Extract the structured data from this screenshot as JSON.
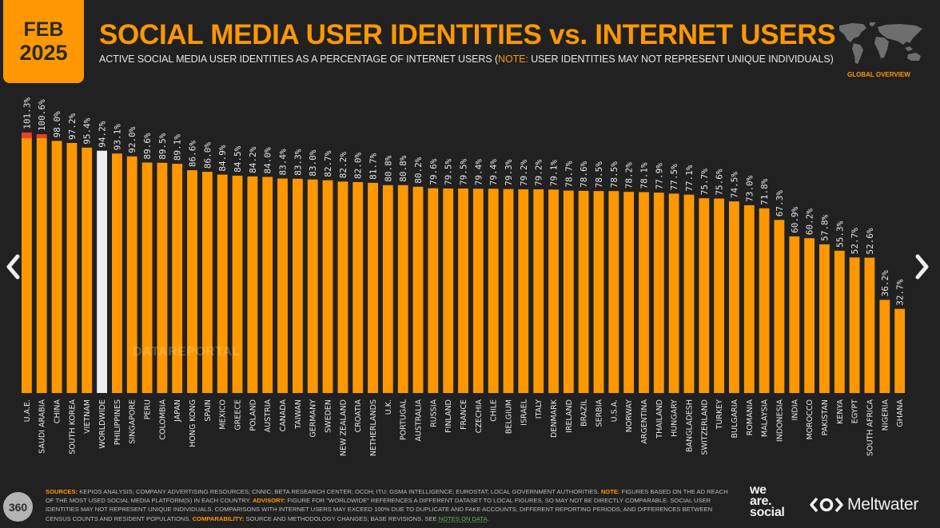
{
  "header": {
    "date_month": "FEB",
    "date_year": "2025",
    "title": "SOCIAL MEDIA USER IDENTITIES vs. INTERNET USERS",
    "subtitle_main": "ACTIVE SOCIAL MEDIA USER IDENTITIES AS A PERCENTAGE OF INTERNET USERS (",
    "subtitle_note_key": "NOTE:",
    "subtitle_note_text": " USER IDENTITIES MAY NOT REPRESENT UNIQUE INDIVIDUALS)",
    "section_label": "GLOBAL OVERVIEW"
  },
  "navigation": {
    "prev_icon": "chevron-left",
    "next_icon": "chevron-right"
  },
  "watermark": "DATAREPORTAL",
  "footer": {
    "page_number": "360",
    "sources_key": "SOURCES:",
    "sources_text": " KEPIOS ANALYSIS; COMPANY ADVERTISING RESOURCES; CNNIC; BETA RESEARCH CENTER; OCDH; ITU; GSMA INTELLIGENCE; EUROSTAT; LOCAL GOVERNMENT AUTHORITIES. ",
    "note_key": "NOTE:",
    "note_text": " FIGURES BASED ON THE AD REACH OF THE MOST USED SOCIAL MEDIA PLATFORM(S) IN EACH COUNTRY. ",
    "advisory_key": "ADVISORY:",
    "advisory_text": " FIGURE FOR \"WORLDWIDE\" REFERENCES A DIFFERENT DATASET TO LOCAL FIGURES, SO MAY NOT BE DIRECTLY COMPARABLE. SOCIAL USER IDENTITIES MAY NOT REPRESENT UNIQUE INDIVIDUALS. COMPARISONS WITH INTERNET USERS MAY EXCEED 100% DUE TO DUPLICATE AND FAKE ACCOUNTS, DIFFERENT REPORTING PERIODS, AND DIFFERENCES BETWEEN CENSUS COUNTS AND RESIDENT POPULATIONS. ",
    "comparability_key": "COMPARABILITY:",
    "comparability_text": " SOURCE AND METHODOLOGY CHANGES; BASE REVISIONS. SEE ",
    "notes_link": "NOTES ON DATA",
    "notes_end": ".",
    "logo_we": "we",
    "logo_are": "are.",
    "logo_social": "social",
    "logo_meltwater": "Meltwater"
  },
  "colors": {
    "background": "#212121",
    "bar": "#ff9800",
    "bar_highlight": "#eeeeee",
    "bar_overflow": "#e8412c",
    "accent": "#ff9800",
    "link": "#5cb85c"
  },
  "chart_data": {
    "type": "bar",
    "title": "SOCIAL MEDIA USER IDENTITIES vs. INTERNET USERS",
    "subtitle": "ACTIVE SOCIAL MEDIA USER IDENTITIES AS A PERCENTAGE OF INTERNET USERS",
    "xlabel": "",
    "ylabel": "",
    "ylim": [
      0,
      105
    ],
    "grid": false,
    "unit": "%",
    "highlight_category": "WORLDWIDE",
    "overflow_threshold": 100,
    "categories": [
      "U.A.E.",
      "SAUDI ARABIA",
      "CHINA",
      "SOUTH KOREA",
      "VIETNAM",
      "WORLDWIDE",
      "PHILIPPINES",
      "SINGAPORE",
      "PERU",
      "COLOMBIA",
      "JAPAN",
      "HONG KONG",
      "SPAIN",
      "MEXICO",
      "GREECE",
      "POLAND",
      "AUSTRIA",
      "CANADA",
      "TAIWAN",
      "GERMANY",
      "SWEDEN",
      "NEW ZEALAND",
      "CROATIA",
      "NETHERLANDS",
      "U.K.",
      "PORTUGAL",
      "AUSTRALIA",
      "RUSSIA",
      "FINLAND",
      "FRANCE",
      "CZECHIA",
      "CHILE",
      "BELGIUM",
      "ISRAEL",
      "ITALY",
      "DENMARK",
      "IRELAND",
      "BRAZIL",
      "SERBIA",
      "U.S.A.",
      "NORWAY",
      "ARGENTINA",
      "THAILAND",
      "HUNGARY",
      "BANGLADESH",
      "SWITZERLAND",
      "TURKEY",
      "BULGARIA",
      "ROMANIA",
      "MALAYSIA",
      "INDONESIA",
      "INDIA",
      "MOROCCO",
      "PAKISTAN",
      "KENYA",
      "EGYPT",
      "SOUTH AFRICA",
      "NIGERIA",
      "GHANA"
    ],
    "values": [
      101.3,
      100.6,
      98.0,
      97.2,
      95.4,
      94.2,
      93.1,
      92.0,
      89.6,
      89.5,
      89.1,
      86.6,
      86.0,
      84.9,
      84.5,
      84.2,
      84.0,
      83.4,
      83.3,
      83.0,
      82.7,
      82.2,
      82.0,
      81.7,
      80.8,
      80.8,
      80.2,
      79.6,
      79.5,
      79.5,
      79.4,
      79.4,
      79.3,
      79.2,
      79.2,
      79.1,
      78.7,
      78.6,
      78.5,
      78.5,
      78.2,
      78.1,
      77.9,
      77.5,
      77.1,
      75.7,
      75.6,
      74.5,
      73.0,
      71.8,
      67.3,
      60.9,
      60.2,
      57.8,
      55.3,
      52.7,
      52.6,
      36.2,
      32.7
    ],
    "value_labels": [
      "101.3%",
      "100.6%",
      "98.0%",
      "97.2%",
      "95.4%",
      "94.2%",
      "93.1%",
      "92.0%",
      "89.6%",
      "89.5%",
      "89.1%",
      "86.6%",
      "86.0%",
      "84.9%",
      "84.5%",
      "84.2%",
      "84.0%",
      "83.4%",
      "83.3%",
      "83.0%",
      "82.7%",
      "82.2%",
      "82.0%",
      "81.7%",
      "80.8%",
      "80.8%",
      "80.2%",
      "79.6%",
      "79.5%",
      "79.5%",
      "79.4%",
      "79.4%",
      "79.3%",
      "79.2%",
      "79.2%",
      "79.1%",
      "78.7%",
      "78.6%",
      "78.5%",
      "78.5%",
      "78.2%",
      "78.1%",
      "77.9%",
      "77.5%",
      "77.1%",
      "75.7%",
      "75.6%",
      "74.5%",
      "73.0%",
      "71.8%",
      "67.3%",
      "60.9%",
      "60.2%",
      "57.8%",
      "55.3%",
      "52.7%",
      "52.6%",
      "36.2%",
      "32.7%"
    ]
  }
}
